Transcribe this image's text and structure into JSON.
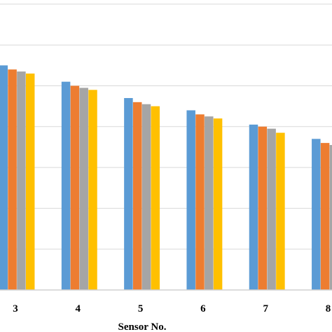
{
  "chart_data": {
    "type": "bar",
    "categories": [
      "3",
      "4",
      "5",
      "6",
      "7",
      "8"
    ],
    "series": [
      {
        "color": "#5B9BD5",
        "values": [
          5.5,
          5.1,
          4.7,
          4.4,
          4.05,
          3.7
        ]
      },
      {
        "color": "#ED7D31",
        "values": [
          5.4,
          5.0,
          4.6,
          4.3,
          4.0,
          3.6
        ]
      },
      {
        "color": "#A5A5A5",
        "values": [
          5.35,
          4.95,
          4.55,
          4.25,
          3.95,
          3.55
        ]
      },
      {
        "color": "#FFC000",
        "values": [
          5.3,
          4.9,
          4.5,
          4.2,
          3.85,
          3.5
        ]
      }
    ],
    "title": "",
    "xlabel": "Sensor No.",
    "ylabel": "",
    "ylim": [
      0,
      7
    ],
    "grid": true,
    "legend": "none"
  }
}
